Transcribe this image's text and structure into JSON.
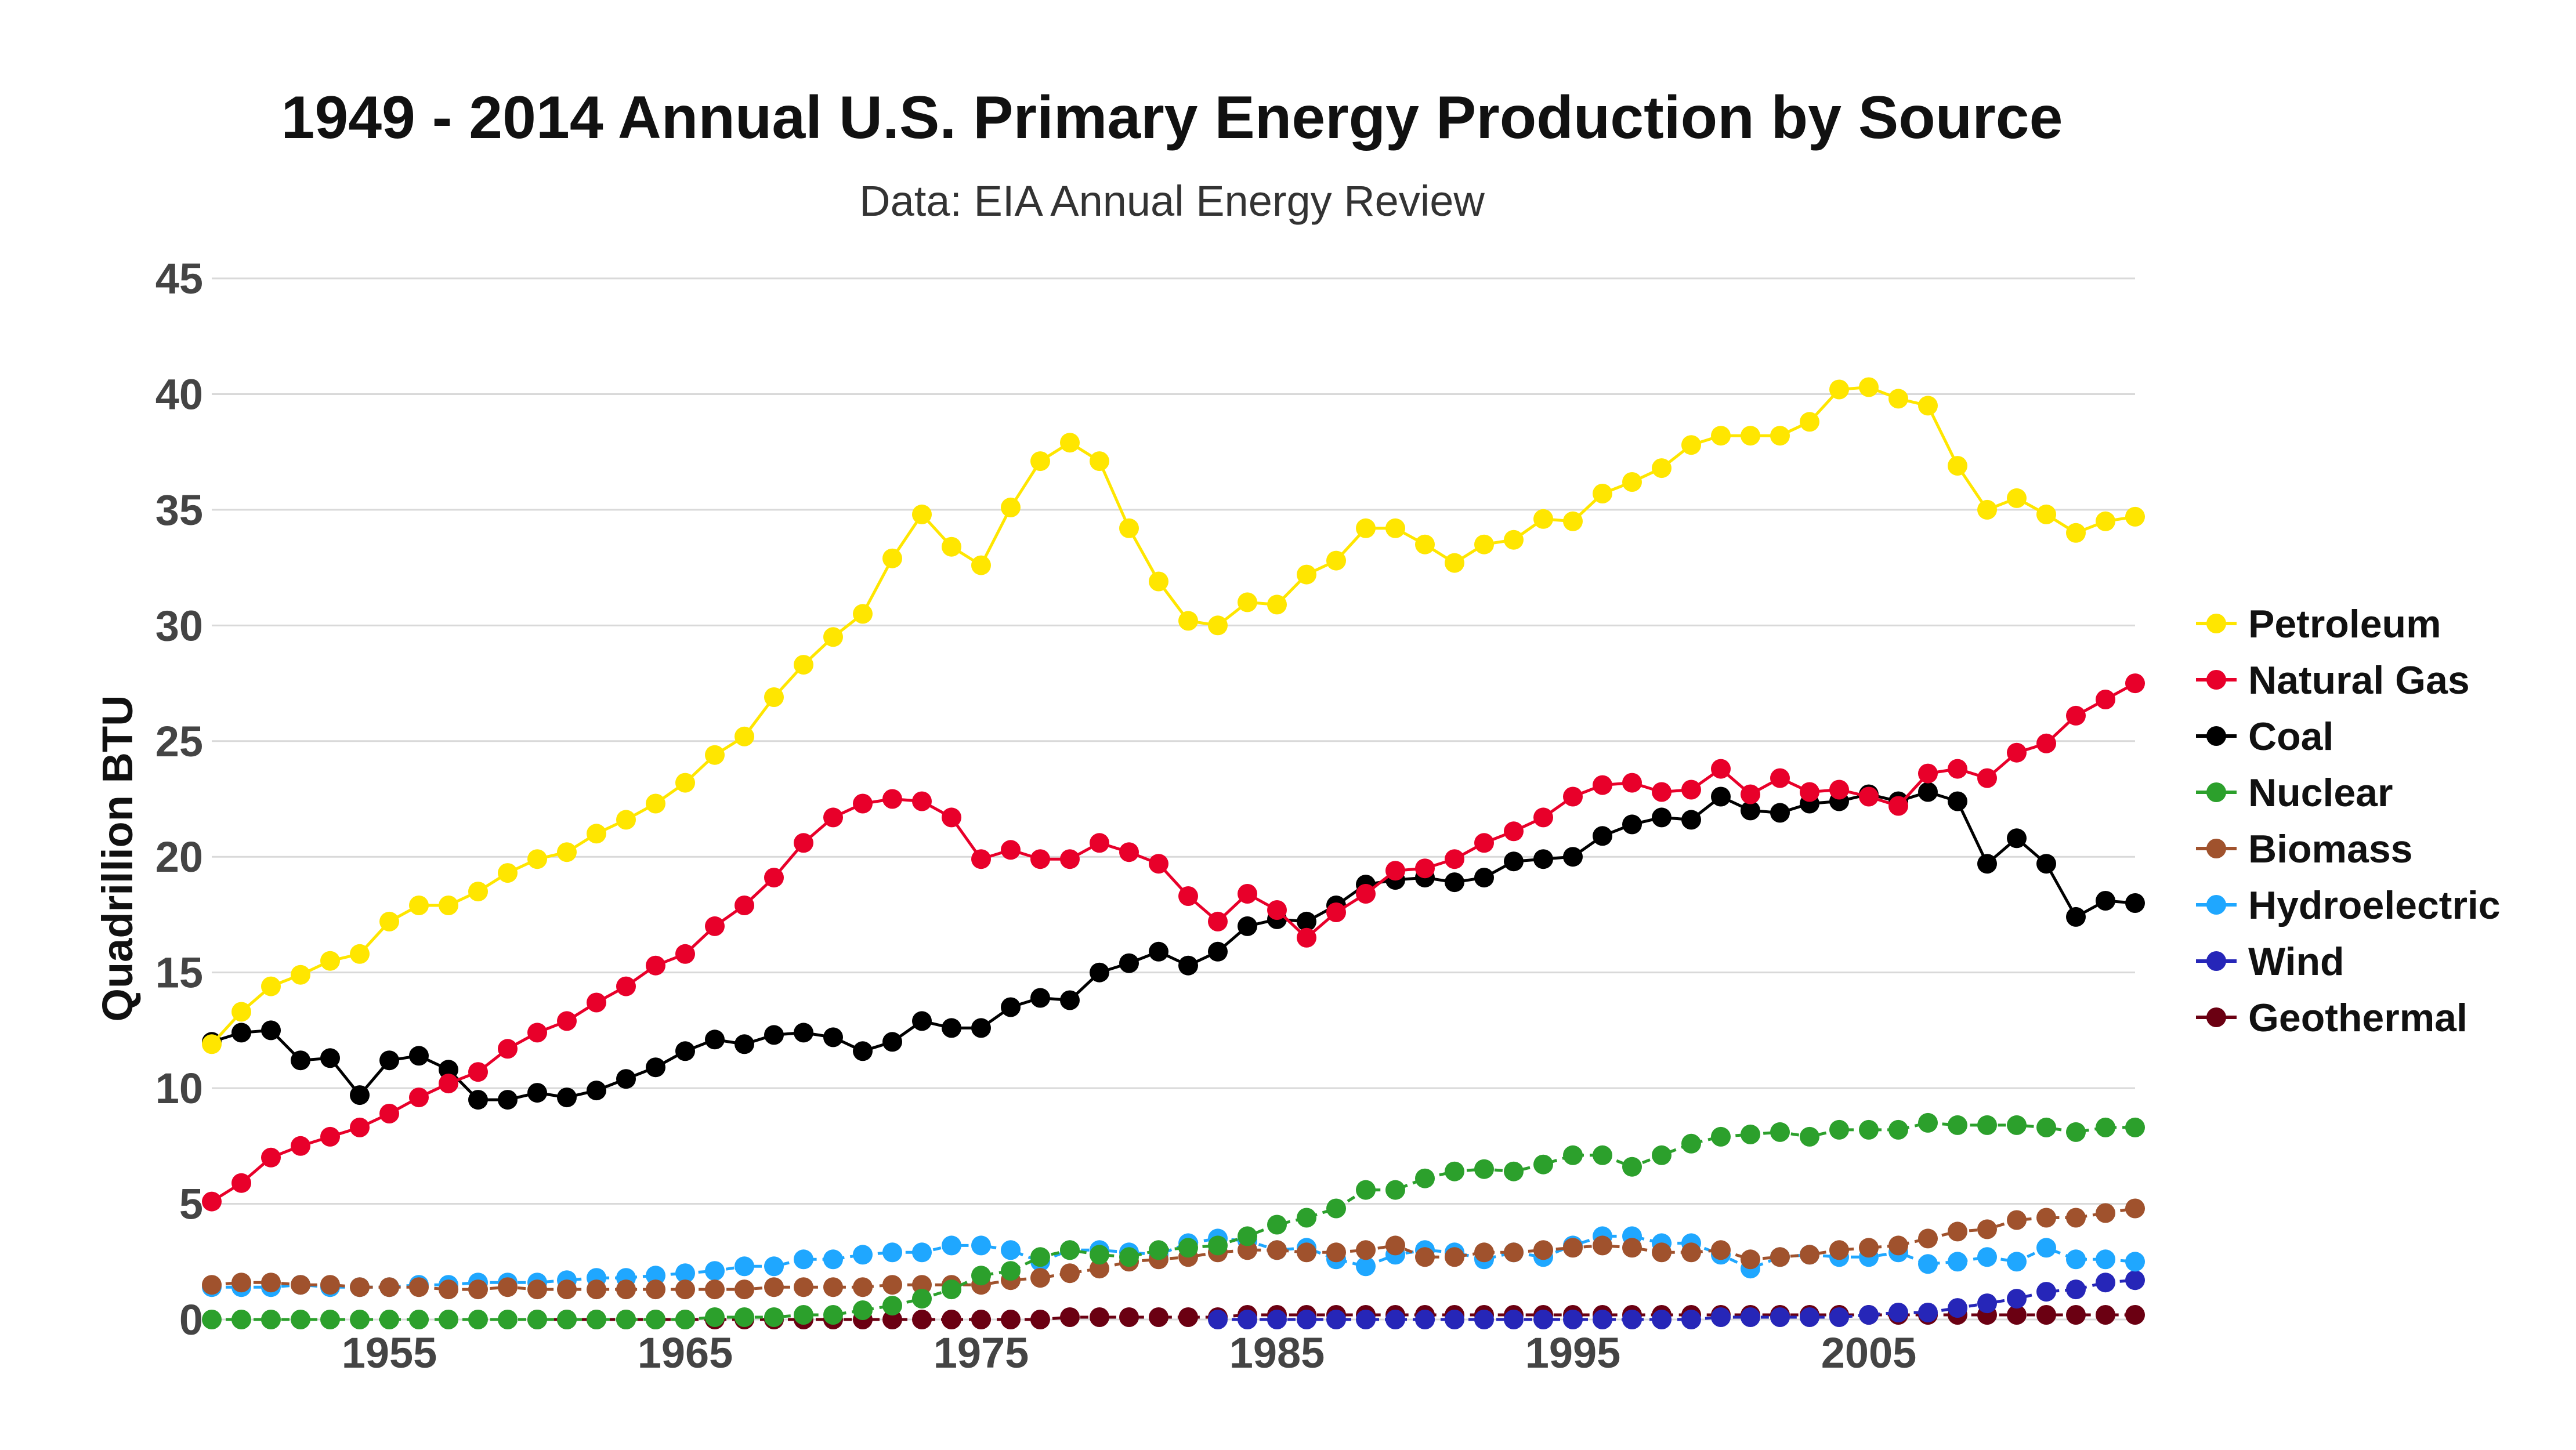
{
  "chart_data": {
    "type": "line",
    "title": "1949 - 2014 Annual U.S. Primary Energy Production by Source",
    "subtitle": "Data: EIA Annual Energy Review",
    "ylabel": "Quadrillion BTU",
    "xlim": [
      1949,
      2014
    ],
    "ylim": [
      0,
      45
    ],
    "x_ticks": [
      1955,
      1965,
      1975,
      1985,
      1995,
      2005
    ],
    "y_ticks": [
      0,
      5,
      10,
      15,
      20,
      25,
      30,
      35,
      40,
      45
    ],
    "grid": true,
    "legend_position": "right",
    "x_start": 1949,
    "series": [
      {
        "name": "Petroleum",
        "color": "#ffe600",
        "values": [
          11.9,
          13.3,
          14.4,
          14.9,
          15.5,
          15.8,
          17.2,
          17.9,
          17.9,
          18.5,
          19.3,
          19.9,
          20.2,
          21.0,
          21.6,
          22.3,
          23.2,
          24.4,
          25.2,
          26.9,
          28.3,
          29.5,
          30.5,
          32.9,
          34.8,
          33.4,
          32.6,
          35.1,
          37.1,
          37.9,
          37.1,
          34.2,
          31.9,
          30.2,
          30.0,
          31.0,
          30.9,
          32.2,
          32.8,
          34.2,
          34.2,
          33.5,
          32.7,
          33.5,
          33.7,
          34.6,
          34.5,
          35.7,
          36.2,
          36.8,
          37.8,
          38.2,
          38.2,
          38.2,
          38.8,
          40.2,
          40.3,
          39.8,
          39.5,
          36.9,
          35.0,
          35.5,
          34.8,
          34.0,
          34.5,
          34.7
        ]
      },
      {
        "name": "Natural Gas",
        "color": "#e8002a",
        "values": [
          5.1,
          5.9,
          7.0,
          7.5,
          7.9,
          8.3,
          8.9,
          9.6,
          10.2,
          10.7,
          11.7,
          12.4,
          12.9,
          13.7,
          14.4,
          15.3,
          15.8,
          17.0,
          17.9,
          19.1,
          20.6,
          21.7,
          22.3,
          22.5,
          22.4,
          21.7,
          19.9,
          20.3,
          19.9,
          19.9,
          20.6,
          20.2,
          19.7,
          18.3,
          17.2,
          18.4,
          17.7,
          16.5,
          17.6,
          18.4,
          19.4,
          19.5,
          19.9,
          20.6,
          21.1,
          21.7,
          22.6,
          23.1,
          23.2,
          22.8,
          22.9,
          23.8,
          22.7,
          23.4,
          22.8,
          22.9,
          22.6,
          22.2,
          23.6,
          23.8,
          23.4,
          24.5,
          24.9,
          26.1,
          26.8,
          27.5
        ]
      },
      {
        "name": "Coal",
        "color": "#000000",
        "values": [
          12.0,
          12.4,
          12.5,
          11.2,
          11.3,
          9.7,
          11.2,
          11.4,
          10.8,
          9.5,
          9.5,
          9.8,
          9.6,
          9.9,
          10.4,
          10.9,
          11.6,
          12.1,
          11.9,
          12.3,
          12.4,
          12.2,
          11.6,
          12.0,
          12.9,
          12.6,
          12.6,
          13.5,
          13.9,
          13.8,
          15.0,
          15.4,
          15.9,
          15.3,
          15.9,
          17.0,
          17.3,
          17.2,
          17.9,
          18.8,
          19.0,
          19.1,
          18.9,
          19.1,
          19.8,
          19.9,
          20.0,
          20.9,
          21.4,
          21.7,
          21.6,
          22.6,
          22.0,
          21.9,
          22.3,
          22.4,
          22.7,
          22.4,
          22.8,
          22.4,
          19.7,
          20.8,
          19.7,
          17.4,
          18.1,
          18.0
        ]
      },
      {
        "name": "Nuclear",
        "color": "#2ca02c",
        "values": [
          0,
          0,
          0,
          0,
          0,
          0,
          0,
          0,
          0,
          0,
          0,
          0,
          0,
          0,
          0,
          0,
          0,
          0.1,
          0.1,
          0.1,
          0.2,
          0.2,
          0.4,
          0.6,
          0.9,
          1.3,
          1.9,
          2.1,
          2.7,
          3.0,
          2.8,
          2.7,
          3.0,
          3.1,
          3.2,
          3.6,
          4.1,
          4.4,
          4.8,
          5.6,
          5.6,
          6.1,
          6.4,
          6.5,
          6.4,
          6.7,
          7.1,
          7.1,
          6.6,
          7.1,
          7.6,
          7.9,
          8.0,
          8.1,
          7.9,
          8.2,
          8.2,
          8.2,
          8.5,
          8.4,
          8.4,
          8.4,
          8.3,
          8.1,
          8.3,
          8.3
        ]
      },
      {
        "name": "Biomass",
        "color": "#a0522d",
        "values": [
          1.5,
          1.6,
          1.6,
          1.5,
          1.5,
          1.4,
          1.4,
          1.4,
          1.3,
          1.3,
          1.4,
          1.3,
          1.3,
          1.3,
          1.3,
          1.3,
          1.3,
          1.3,
          1.3,
          1.4,
          1.4,
          1.4,
          1.4,
          1.5,
          1.5,
          1.5,
          1.5,
          1.7,
          1.8,
          2.0,
          2.2,
          2.5,
          2.6,
          2.7,
          2.9,
          3.0,
          3.0,
          2.9,
          2.9,
          3.0,
          3.2,
          2.7,
          2.7,
          2.9,
          2.9,
          3.0,
          3.1,
          3.2,
          3.1,
          2.9,
          2.9,
          3.0,
          2.6,
          2.7,
          2.8,
          3.0,
          3.1,
          3.2,
          3.5,
          3.8,
          3.9,
          4.3,
          4.4,
          4.4,
          4.6,
          4.8
        ]
      },
      {
        "name": "Hydroelectric",
        "color": "#1fa7ff",
        "values": [
          1.4,
          1.4,
          1.4,
          1.5,
          1.4,
          1.4,
          1.4,
          1.5,
          1.5,
          1.6,
          1.6,
          1.6,
          1.7,
          1.8,
          1.8,
          1.9,
          2.0,
          2.1,
          2.3,
          2.3,
          2.6,
          2.6,
          2.8,
          2.9,
          2.9,
          3.2,
          3.2,
          3.0,
          2.5,
          3.0,
          3.0,
          2.9,
          2.8,
          3.3,
          3.5,
          3.4,
          3.0,
          3.1,
          2.6,
          2.3,
          2.8,
          3.0,
          2.9,
          2.6,
          2.9,
          2.7,
          3.2,
          3.6,
          3.6,
          3.3,
          3.3,
          2.8,
          2.2,
          2.7,
          2.8,
          2.7,
          2.7,
          2.9,
          2.4,
          2.5,
          2.7,
          2.5,
          3.1,
          2.6,
          2.6,
          2.5
        ]
      },
      {
        "name": "Wind",
        "color": "#2626b8",
        "values": [
          null,
          null,
          null,
          null,
          null,
          null,
          null,
          null,
          null,
          null,
          null,
          null,
          null,
          null,
          null,
          null,
          null,
          null,
          null,
          null,
          null,
          null,
          null,
          null,
          null,
          null,
          null,
          null,
          null,
          null,
          null,
          null,
          null,
          null,
          0,
          0,
          0,
          0,
          0,
          0,
          0,
          0,
          0,
          0,
          0,
          0,
          0,
          0,
          0,
          0,
          0,
          0.1,
          0.1,
          0.1,
          0.1,
          0.1,
          0.2,
          0.3,
          0.3,
          0.5,
          0.7,
          0.9,
          1.2,
          1.3,
          1.6,
          1.7
        ]
      },
      {
        "name": "Geothermal",
        "color": "#6b0012",
        "values": [
          null,
          null,
          null,
          null,
          null,
          null,
          null,
          null,
          null,
          null,
          null,
          0,
          0,
          0,
          0,
          0,
          0,
          0,
          0,
          0,
          0,
          0,
          0,
          0,
          0,
          0,
          0,
          0,
          0,
          0.1,
          0.1,
          0.1,
          0.1,
          0.1,
          0.1,
          0.2,
          0.2,
          0.2,
          0.2,
          0.2,
          0.2,
          0.2,
          0.2,
          0.2,
          0.2,
          0.2,
          0.2,
          0.2,
          0.2,
          0.2,
          0.2,
          0.2,
          0.2,
          0.2,
          0.2,
          0.2,
          0.2,
          0.2,
          0.2,
          0.2,
          0.2,
          0.2,
          0.2,
          0.2,
          0.2,
          0.2
        ]
      }
    ]
  }
}
